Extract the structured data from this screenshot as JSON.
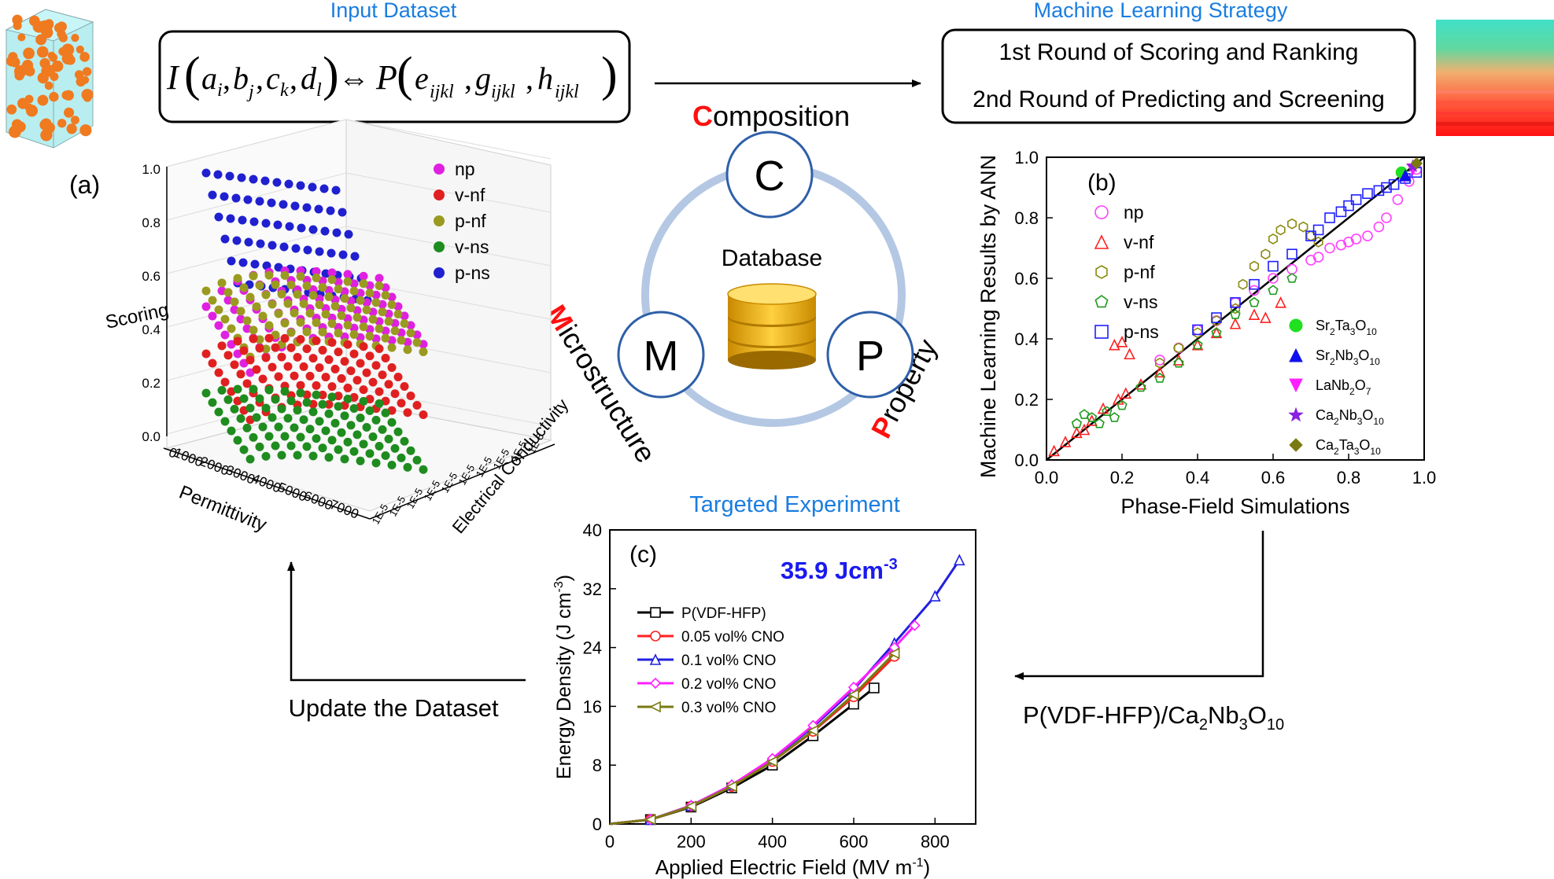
{
  "labels": {
    "input_dataset": "Input Dataset",
    "ml_strategy": "Machine Learning Strategy",
    "round1": "1st Round of Scoring and Ranking",
    "round2": "2nd Round of Predicting and Screening",
    "targeted_experiment": "Targeted Experiment",
    "update_dataset": "Update the Dataset",
    "composite": "P(VDF-HFP)/Ca",
    "composite_sub1": "2",
    "composite_mid": "Nb",
    "composite_sub2": "3",
    "composite_o": "O",
    "composite_sub3": "10",
    "equation": {
      "I": "I",
      "a": "a",
      "ai": "i",
      "b": "b",
      "bj": "j",
      "c": "c",
      "ck": "k",
      "d": "d",
      "dl": "l",
      "iff": "⇔",
      "P": "P",
      "e": "e",
      "g": "g",
      "h": "h",
      "sub": "ijkl"
    }
  },
  "cycle": {
    "composition_first": "C",
    "composition_rest": "omposition",
    "microstructure_first": "M",
    "microstructure_rest": "icrostructure",
    "property_first": "P",
    "property_rest": "roperty",
    "node_c": "C",
    "node_m": "M",
    "node_p": "P",
    "database": "Database"
  },
  "panel_a": {
    "label": "(a)",
    "zlabel": "Scoring",
    "xlabel": "Permittivity",
    "ylabel": "Electrical Conductivity",
    "zticks": [
      "0.0",
      "0.2",
      "0.4",
      "0.6",
      "0.8",
      "1.0"
    ],
    "xticks": [
      "0",
      "1000",
      "2000",
      "3000",
      "4000",
      "5000",
      "6000",
      "7000"
    ],
    "legend": [
      {
        "name": "np",
        "color": "#e020e0"
      },
      {
        "name": "v-nf",
        "color": "#e02020"
      },
      {
        "name": "p-nf",
        "color": "#9a9a20"
      },
      {
        "name": "v-ns",
        "color": "#1e8c1e"
      },
      {
        "name": "p-ns",
        "color": "#2020d0"
      }
    ]
  },
  "chart_data": [
    {
      "type": "scatter",
      "panel": "(b)",
      "xlabel": "Phase-Field Simulations",
      "ylabel": "Machine Learning Results by ANN",
      "xlim": [
        0,
        1.0
      ],
      "ylim": [
        0,
        1.0
      ],
      "xticks": [
        "0.0",
        "0.2",
        "0.4",
        "0.6",
        "0.8",
        "1.0"
      ],
      "yticks": [
        "0.0",
        "0.2",
        "0.4",
        "0.6",
        "0.8",
        "1.0"
      ],
      "legend_placement": "left-top",
      "series": [
        {
          "name": "np",
          "marker": "circle-open",
          "color": "#ff40ff",
          "x": [
            0.3,
            0.35,
            0.4,
            0.45,
            0.5,
            0.55,
            0.6,
            0.65,
            0.7,
            0.72,
            0.75,
            0.78,
            0.8,
            0.82,
            0.85,
            0.88,
            0.9,
            0.93,
            0.96,
            0.98
          ],
          "y": [
            0.33,
            0.37,
            0.43,
            0.46,
            0.52,
            0.56,
            0.6,
            0.63,
            0.66,
            0.67,
            0.7,
            0.71,
            0.72,
            0.73,
            0.74,
            0.77,
            0.8,
            0.86,
            0.92,
            0.96
          ]
        },
        {
          "name": "v-nf",
          "marker": "triangle-open",
          "color": "#ff2020",
          "x": [
            0.02,
            0.05,
            0.08,
            0.1,
            0.12,
            0.15,
            0.18,
            0.2,
            0.22,
            0.19,
            0.21,
            0.25,
            0.3,
            0.35,
            0.4,
            0.45,
            0.5,
            0.55,
            0.58,
            0.62
          ],
          "y": [
            0.03,
            0.06,
            0.09,
            0.1,
            0.13,
            0.17,
            0.38,
            0.39,
            0.35,
            0.2,
            0.22,
            0.25,
            0.29,
            0.33,
            0.38,
            0.42,
            0.45,
            0.48,
            0.47,
            0.52
          ]
        },
        {
          "name": "p-nf",
          "marker": "hexagon-open",
          "color": "#8a8a10",
          "x": [
            0.3,
            0.35,
            0.4,
            0.45,
            0.5,
            0.52,
            0.55,
            0.58,
            0.6,
            0.62,
            0.65,
            0.68,
            0.7,
            0.72
          ],
          "y": [
            0.32,
            0.37,
            0.42,
            0.46,
            0.5,
            0.58,
            0.64,
            0.68,
            0.73,
            0.76,
            0.78,
            0.77,
            0.74,
            0.72
          ]
        },
        {
          "name": "v-ns",
          "marker": "pentagon-open",
          "color": "#1e9b1e",
          "x": [
            0.08,
            0.1,
            0.12,
            0.14,
            0.16,
            0.18,
            0.2,
            0.25,
            0.3,
            0.35,
            0.4,
            0.45,
            0.5,
            0.55,
            0.6,
            0.65
          ],
          "y": [
            0.12,
            0.15,
            0.14,
            0.12,
            0.16,
            0.14,
            0.18,
            0.24,
            0.27,
            0.32,
            0.38,
            0.42,
            0.48,
            0.52,
            0.56,
            0.6
          ]
        },
        {
          "name": "p-ns",
          "marker": "square-open",
          "color": "#2020ff",
          "x": [
            0.4,
            0.45,
            0.5,
            0.55,
            0.6,
            0.65,
            0.7,
            0.72,
            0.75,
            0.78,
            0.8,
            0.82,
            0.85,
            0.88,
            0.9,
            0.92,
            0.95,
            0.98
          ],
          "y": [
            0.43,
            0.47,
            0.52,
            0.58,
            0.64,
            0.68,
            0.74,
            0.76,
            0.8,
            0.82,
            0.84,
            0.86,
            0.88,
            0.89,
            0.9,
            0.91,
            0.93,
            0.95
          ]
        },
        {
          "name": "Sr2Ta3O10",
          "label_main": "Sr",
          "label_parts": [
            "Sr",
            "2",
            "Ta",
            "3",
            "O",
            "10"
          ],
          "marker": "circle-filled",
          "color": "#20e020",
          "x": [
            0.94
          ],
          "y": [
            0.95
          ]
        },
        {
          "name": "Sr2Nb3O10",
          "label_parts": [
            "Sr",
            "2",
            "Nb",
            "3",
            "O",
            "10"
          ],
          "marker": "triangle-filled",
          "color": "#1010ee",
          "x": [
            0.95
          ],
          "y": [
            0.94
          ]
        },
        {
          "name": "LaNb2O7",
          "label_parts": [
            "LaNb",
            "2",
            "O",
            "7",
            "",
            " "
          ],
          "marker": "triangle-down-filled",
          "color": "#ff20ff",
          "x": [
            0.97
          ],
          "y": [
            0.96
          ]
        },
        {
          "name": "Ca2Nb3O10",
          "label_parts": [
            "Ca",
            "2",
            "Nb",
            "3",
            "O",
            "10"
          ],
          "marker": "star-filled",
          "color": "#8a20e0",
          "x": [
            0.97
          ],
          "y": [
            0.97
          ]
        },
        {
          "name": "Ca2Ta3O10",
          "label_parts": [
            "Ca",
            "2",
            "Ta",
            "3",
            "O",
            "10"
          ],
          "marker": "diamond-filled",
          "color": "#7a7a10",
          "x": [
            0.98
          ],
          "y": [
            0.98
          ]
        }
      ]
    },
    {
      "type": "line",
      "panel": "(c)",
      "xlabel": "Applied Electric Field (MV m",
      "xlabel_sup": "-1",
      "xlabel_end": ")",
      "ylabel": "Energy Density (J cm",
      "ylabel_sup": "-3",
      "ylabel_end": ")",
      "annotation": "35.9 Jcm",
      "annotation_sup": "-3",
      "xlim": [
        0,
        900
      ],
      "ylim": [
        0,
        40
      ],
      "xticks": [
        "0",
        "200",
        "400",
        "600",
        "800"
      ],
      "yticks": [
        "0",
        "8",
        "16",
        "24",
        "32",
        "40"
      ],
      "legend_placement": "left-middle",
      "series": [
        {
          "name": "P(VDF-HFP)",
          "marker": "square-open",
          "color": "#000000",
          "x": [
            0,
            100,
            200,
            300,
            400,
            500,
            600,
            650
          ],
          "y": [
            0,
            0.6,
            2.3,
            4.9,
            8.0,
            12.0,
            16.3,
            18.5
          ]
        },
        {
          "name": "0.05 vol% CNO",
          "marker": "circle-open",
          "color": "#ff2020",
          "x": [
            0,
            100,
            200,
            300,
            400,
            500,
            600,
            700
          ],
          "y": [
            0,
            0.6,
            2.4,
            5.1,
            8.5,
            12.6,
            17.3,
            22.8
          ]
        },
        {
          "name": "0.1 vol% CNO",
          "marker": "triangle-open",
          "color": "#2020e0",
          "x": [
            0,
            100,
            200,
            300,
            400,
            500,
            600,
            700,
            800,
            860
          ],
          "y": [
            0,
            0.6,
            2.5,
            5.3,
            8.8,
            13.2,
            18.3,
            24.6,
            31.0,
            35.9
          ]
        },
        {
          "name": "0.2 vol% CNO",
          "marker": "diamond-open",
          "color": "#ff20ff",
          "x": [
            0,
            100,
            200,
            300,
            400,
            500,
            600,
            700,
            750
          ],
          "y": [
            0,
            0.6,
            2.5,
            5.3,
            8.9,
            13.4,
            18.6,
            24.0,
            27.0
          ]
        },
        {
          "name": "0.3 vol% CNO",
          "marker": "triangle-left-open",
          "color": "#7a7a10",
          "x": [
            0,
            100,
            200,
            300,
            400,
            500,
            600,
            700
          ],
          "y": [
            0,
            0.6,
            2.4,
            5.1,
            8.5,
            12.7,
            17.6,
            23.2
          ]
        }
      ]
    }
  ]
}
